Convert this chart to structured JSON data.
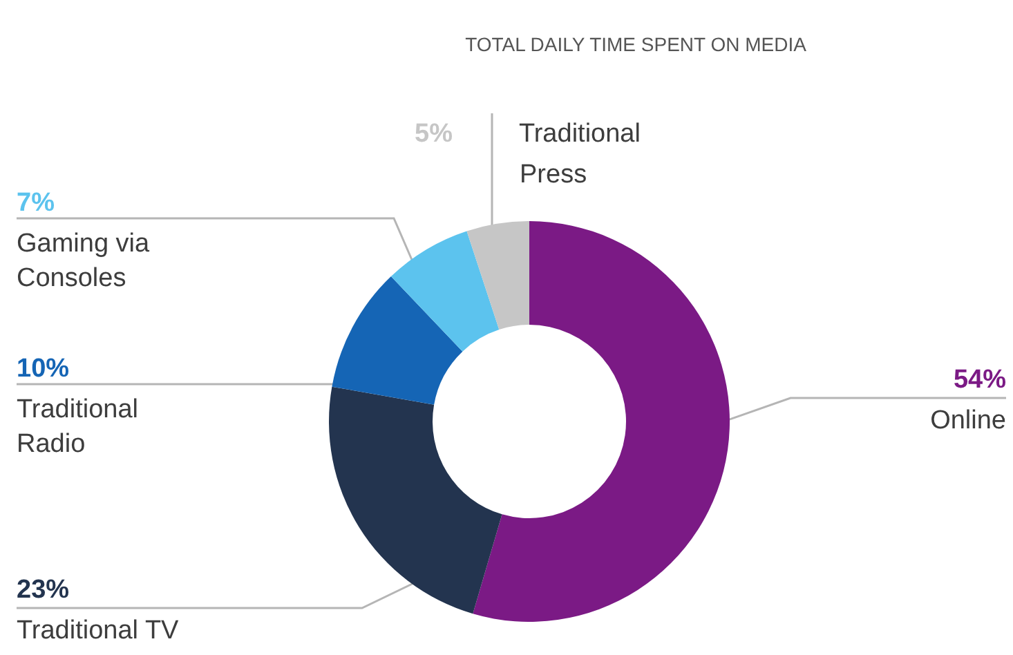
{
  "chart_data": {
    "type": "donut",
    "title": "TOTAL DAILY TIME SPENT ON MEDIA",
    "categories": [
      "Online",
      "Traditional TV",
      "Traditional Radio",
      "Gaming via Consoles",
      "Traditional Press"
    ],
    "values": [
      54,
      23,
      10,
      7,
      5
    ],
    "colors": [
      "#7b1a85",
      "#23344f",
      "#1565b5",
      "#5cc3ee",
      "#c6c6c6"
    ],
    "value_labels": [
      "54%",
      "23%",
      "10%",
      "7%",
      "5%"
    ]
  }
}
